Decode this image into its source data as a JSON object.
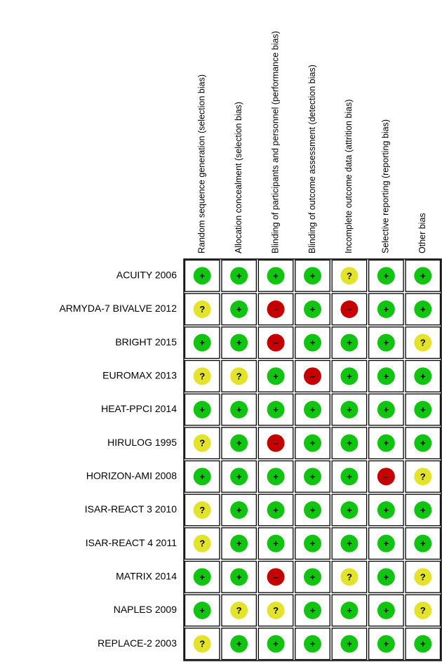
{
  "columns": [
    "Random sequence generation (selection bias)",
    "Allocation concealment (selection bias)",
    "Blinding of participants and personnel (performance bias)",
    "Blinding of outcome assessment (detection bias)",
    "Incomplete outcome data (attrition bias)",
    "Selective reporting (reporting bias)",
    "Other bias"
  ],
  "symbol_colors": {
    "+": "#12c412",
    "?": "#e3e32c",
    "–": "#c40000"
  },
  "rows": [
    {
      "study": "ACUITY 2006",
      "judgements": [
        "+",
        "+",
        "+",
        "+",
        "?",
        "+",
        "+"
      ]
    },
    {
      "study": "ARMYDA-7 BIVALVE 2012",
      "judgements": [
        "?",
        "+",
        "–",
        "+",
        "–",
        "+",
        "+"
      ]
    },
    {
      "study": "BRIGHT 2015",
      "judgements": [
        "+",
        "+",
        "–",
        "+",
        "+",
        "+",
        "?"
      ]
    },
    {
      "study": "EUROMAX 2013",
      "judgements": [
        "?",
        "?",
        "+",
        "–",
        "+",
        "+",
        "+"
      ]
    },
    {
      "study": "HEAT-PPCI 2014",
      "judgements": [
        "+",
        "+",
        "+",
        "+",
        "+",
        "+",
        "+"
      ]
    },
    {
      "study": "HIRULOG 1995",
      "judgements": [
        "?",
        "+",
        "–",
        "+",
        "+",
        "+",
        "+"
      ]
    },
    {
      "study": "HORIZON-AMI 2008",
      "judgements": [
        "+",
        "+",
        "+",
        "+",
        "+",
        "–",
        "?"
      ]
    },
    {
      "study": "ISAR-REACT 3 2010",
      "judgements": [
        "?",
        "+",
        "+",
        "+",
        "+",
        "+",
        "+"
      ]
    },
    {
      "study": "ISAR-REACT 4 2011",
      "judgements": [
        "?",
        "+",
        "+",
        "+",
        "+",
        "+",
        "+"
      ]
    },
    {
      "study": "MATRIX 2014",
      "judgements": [
        "+",
        "+",
        "–",
        "+",
        "?",
        "+",
        "?"
      ]
    },
    {
      "study": "NAPLES 2009",
      "judgements": [
        "+",
        "?",
        "?",
        "+",
        "+",
        "+",
        "?"
      ]
    },
    {
      "study": "REPLACE-2 2003",
      "judgements": [
        "?",
        "+",
        "+",
        "+",
        "+",
        "+",
        "+"
      ]
    }
  ]
}
